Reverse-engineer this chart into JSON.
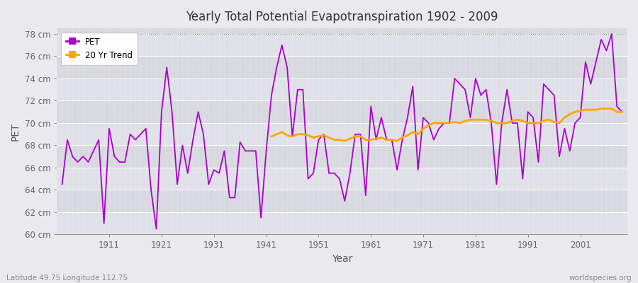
{
  "title": "Yearly Total Potential Evapotranspiration 1902 - 2009",
  "xlabel": "Year",
  "ylabel": "PET",
  "bottom_left_label": "Latitude 49.75 Longitude 112.75",
  "bottom_right_label": "worldspecies.org",
  "pet_color": "#AA00CC",
  "trend_color": "#FFA500",
  "bg_color": "#E8E8EC",
  "plot_bg_color": "#E0E0E8",
  "band_color_light": "#E8E8EE",
  "band_color_dark": "#DCDCE4",
  "ylim": [
    60,
    78.5
  ],
  "yticks": [
    60,
    62,
    64,
    66,
    68,
    70,
    72,
    74,
    76,
    78
  ],
  "ytick_labels": [
    "60 cm",
    "62 cm",
    "64 cm",
    "66 cm",
    "68 cm",
    "70 cm",
    "72 cm",
    "74 cm",
    "76 cm",
    "78 cm"
  ],
  "xticks": [
    1911,
    1921,
    1931,
    1941,
    1951,
    1961,
    1971,
    1981,
    1991,
    2001
  ],
  "xlim": [
    1901,
    2010
  ],
  "years": [
    1902,
    1903,
    1904,
    1905,
    1906,
    1907,
    1908,
    1909,
    1910,
    1911,
    1912,
    1913,
    1914,
    1915,
    1916,
    1917,
    1918,
    1919,
    1920,
    1921,
    1922,
    1923,
    1924,
    1925,
    1926,
    1927,
    1928,
    1929,
    1930,
    1931,
    1932,
    1933,
    1934,
    1935,
    1936,
    1937,
    1938,
    1939,
    1940,
    1941,
    1942,
    1943,
    1944,
    1945,
    1946,
    1947,
    1948,
    1949,
    1950,
    1951,
    1952,
    1953,
    1954,
    1955,
    1956,
    1957,
    1958,
    1959,
    1960,
    1961,
    1962,
    1963,
    1964,
    1965,
    1966,
    1967,
    1968,
    1969,
    1970,
    1971,
    1972,
    1973,
    1974,
    1975,
    1976,
    1977,
    1978,
    1979,
    1980,
    1981,
    1982,
    1983,
    1984,
    1985,
    1986,
    1987,
    1988,
    1989,
    1990,
    1991,
    1992,
    1993,
    1994,
    1995,
    1996,
    1997,
    1998,
    1999,
    2000,
    2001,
    2002,
    2003,
    2004,
    2005,
    2006,
    2007,
    2008,
    2009
  ],
  "pet": [
    64.5,
    68.5,
    67.0,
    66.5,
    67.0,
    66.5,
    67.5,
    68.5,
    61.0,
    69.5,
    67.0,
    66.5,
    66.5,
    69.0,
    68.5,
    69.0,
    69.5,
    64.0,
    60.5,
    71.0,
    75.0,
    71.0,
    64.5,
    68.0,
    65.5,
    68.5,
    71.0,
    69.0,
    64.5,
    65.8,
    65.5,
    67.5,
    63.3,
    63.3,
    68.3,
    67.5,
    67.5,
    67.5,
    61.5,
    67.5,
    72.5,
    75.0,
    77.0,
    75.0,
    68.8,
    73.0,
    73.0,
    65.0,
    65.5,
    68.5,
    69.0,
    65.5,
    65.5,
    65.0,
    63.0,
    65.5,
    69.0,
    69.0,
    63.5,
    71.5,
    68.5,
    70.5,
    68.5,
    68.5,
    65.8,
    68.5,
    70.5,
    73.3,
    65.8,
    70.5,
    70.0,
    68.5,
    69.5,
    70.0,
    70.0,
    74.0,
    73.5,
    73.0,
    70.5,
    74.0,
    72.5,
    73.0,
    70.0,
    64.5,
    70.0,
    73.0,
    70.0,
    70.0,
    65.0,
    71.0,
    70.5,
    66.5,
    73.5,
    73.0,
    72.5,
    67.0,
    69.5,
    67.5,
    70.0,
    70.5,
    75.5,
    73.5,
    75.5,
    77.5,
    76.5,
    78.0,
    71.5,
    71.0
  ],
  "trend_years": [
    1942,
    1943,
    1944,
    1945,
    1946,
    1947,
    1948,
    1949,
    1950,
    1951,
    1952,
    1953,
    1954,
    1955,
    1956,
    1957,
    1958,
    1959,
    1960,
    1961,
    1962,
    1963,
    1964,
    1965,
    1966,
    1967,
    1968,
    1969,
    1970,
    1971,
    1972,
    1973,
    1974,
    1975,
    1976,
    1977,
    1978,
    1979,
    1980,
    1981,
    1982,
    1983,
    1984,
    1985,
    1986,
    1987,
    1988,
    1989,
    1990,
    1991,
    1992,
    1993,
    1994,
    1995,
    1996,
    1997,
    1998,
    1999,
    2000,
    2001,
    2002,
    2003,
    2004,
    2005,
    2006,
    2007,
    2008,
    2009
  ],
  "trend": [
    68.8,
    69.0,
    69.2,
    68.9,
    68.8,
    69.0,
    69.0,
    68.9,
    68.7,
    68.8,
    68.9,
    68.7,
    68.5,
    68.5,
    68.4,
    68.6,
    68.8,
    68.8,
    68.5,
    68.5,
    68.6,
    68.7,
    68.5,
    68.5,
    68.4,
    68.7,
    68.9,
    69.2,
    69.0,
    69.5,
    69.8,
    70.0,
    70.0,
    70.0,
    70.0,
    70.1,
    70.0,
    70.2,
    70.3,
    70.3,
    70.3,
    70.3,
    70.2,
    70.0,
    70.0,
    70.0,
    70.2,
    70.3,
    70.2,
    70.0,
    70.0,
    70.0,
    70.2,
    70.3,
    70.1,
    70.0,
    70.5,
    70.8,
    71.0,
    71.1,
    71.2,
    71.2,
    71.2,
    71.3,
    71.3,
    71.3,
    71.0,
    71.0
  ]
}
